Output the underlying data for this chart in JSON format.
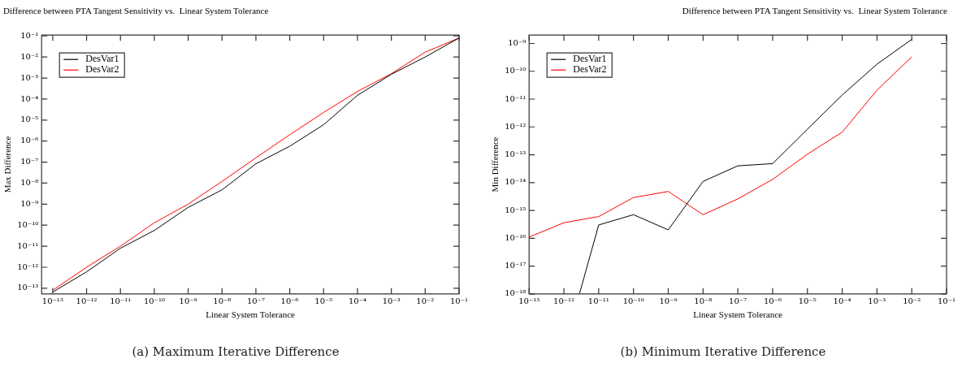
{
  "chart_data": [
    {
      "type": "line",
      "title": "Difference between PTA Tangent Sensitivity vs.  Linear System Tolerance",
      "xlabel": "Linear System Tolerance",
      "ylabel": "Max Difference",
      "log": "xy",
      "grid": false,
      "legend": "top left",
      "marker": "none",
      "line_style": "solid",
      "x": [
        1e-13,
        1e-12,
        1e-11,
        1e-10,
        1e-09,
        1e-08,
        1e-07,
        1e-06,
        1e-05,
        0.0001,
        0.001,
        0.01,
        0.1
      ],
      "xlim": [
        4.7e-14,
        0.1
      ],
      "ylim": [
        5.4e-14,
        0.11
      ],
      "xticks": [
        {
          "value": 1e-13,
          "label": "10⁻¹³"
        },
        {
          "value": 1e-12,
          "label": "10⁻¹²"
        },
        {
          "value": 1e-11,
          "label": "10⁻¹¹"
        },
        {
          "value": 1e-10,
          "label": "10⁻¹⁰"
        },
        {
          "value": 1e-09,
          "label": "10⁻⁹"
        },
        {
          "value": 1e-08,
          "label": "10⁻⁸"
        },
        {
          "value": 1e-07,
          "label": "10⁻⁷"
        },
        {
          "value": 1e-06,
          "label": "10⁻⁶"
        },
        {
          "value": 1e-05,
          "label": "10⁻⁵"
        },
        {
          "value": 0.0001,
          "label": "10⁻⁴"
        },
        {
          "value": 0.001,
          "label": "10⁻³"
        },
        {
          "value": 0.01,
          "label": "10⁻²"
        },
        {
          "value": 0.1,
          "label": "10⁻¹"
        }
      ],
      "yticks": [
        {
          "value": 1e-13,
          "label": "10⁻¹³"
        },
        {
          "value": 1e-12,
          "label": "10⁻¹²"
        },
        {
          "value": 1e-11,
          "label": "10⁻¹¹"
        },
        {
          "value": 1e-10,
          "label": "10⁻¹⁰"
        },
        {
          "value": 1e-09,
          "label": "10⁻⁹"
        },
        {
          "value": 1e-08,
          "label": "10⁻⁸"
        },
        {
          "value": 1e-07,
          "label": "10⁻⁷"
        },
        {
          "value": 1e-06,
          "label": "10⁻⁶"
        },
        {
          "value": 1e-05,
          "label": "10⁻⁵"
        },
        {
          "value": 0.0001,
          "label": "10⁻⁴"
        },
        {
          "value": 0.001,
          "label": "10⁻³"
        },
        {
          "value": 0.01,
          "label": "10⁻²"
        },
        {
          "value": 0.1,
          "label": "10⁻¹"
        }
      ],
      "series": [
        {
          "name": "DesVar1",
          "color": "#000000",
          "values": [
            6.6e-14,
            6e-13,
            8e-12,
            5.6e-11,
            7e-10,
            4.8e-09,
            8.3e-08,
            5.7e-07,
            6e-06,
            0.00015,
            0.0015,
            0.01,
            0.08
          ]
        },
        {
          "name": "DesVar2",
          "color": "#ff0000",
          "values": [
            8e-14,
            1e-12,
            1e-11,
            1.3e-10,
            1e-09,
            1.2e-08,
            1.6e-07,
            2e-06,
            2.3e-05,
            0.00023,
            0.0016,
            0.017,
            0.08
          ]
        }
      ],
      "annotations": [
        "(a)  Maximum Iterative Difference"
      ]
    },
    {
      "type": "line",
      "title": "Difference between PTA Tangent Sensitivity vs.  Linear System Tolerance",
      "xlabel": "Linear System Tolerance",
      "ylabel": "Min Difference",
      "log": "xy",
      "grid": false,
      "legend": "top left",
      "marker": "none",
      "line_style": "solid",
      "x": [
        1e-13,
        1e-12,
        1e-11,
        1e-10,
        1e-09,
        1e-08,
        1e-07,
        1e-06,
        1e-05,
        0.0001,
        0.001,
        0.01
      ],
      "xlim": [
        1e-13,
        0.1
      ],
      "ylim": [
        1e-18,
        2e-09
      ],
      "xticks": [
        {
          "value": 1e-13,
          "label": "10⁻¹³"
        },
        {
          "value": 1e-12,
          "label": "10⁻¹²"
        },
        {
          "value": 1e-11,
          "label": "10⁻¹¹"
        },
        {
          "value": 1e-10,
          "label": "10⁻¹⁰"
        },
        {
          "value": 1e-09,
          "label": "10⁻⁹"
        },
        {
          "value": 1e-08,
          "label": "10⁻⁸"
        },
        {
          "value": 1e-07,
          "label": "10⁻⁷"
        },
        {
          "value": 1e-06,
          "label": "10⁻⁶"
        },
        {
          "value": 1e-05,
          "label": "10⁻⁵"
        },
        {
          "value": 0.0001,
          "label": "10⁻⁴"
        },
        {
          "value": 0.001,
          "label": "10⁻³"
        },
        {
          "value": 0.01,
          "label": "10⁻²"
        },
        {
          "value": 0.1,
          "label": "10⁻¹"
        }
      ],
      "yticks": [
        {
          "value": 1e-18,
          "label": "10⁻¹⁸"
        },
        {
          "value": 1e-17,
          "label": "10⁻¹⁷"
        },
        {
          "value": 1e-16,
          "label": "10⁻¹⁶"
        },
        {
          "value": 1e-15,
          "label": "10⁻¹⁵"
        },
        {
          "value": 1e-14,
          "label": "10⁻¹⁴"
        },
        {
          "value": 1e-13,
          "label": "10⁻¹³"
        },
        {
          "value": 1e-12,
          "label": "10⁻¹²"
        },
        {
          "value": 1e-11,
          "label": "10⁻¹¹"
        },
        {
          "value": 1e-10,
          "label": "10⁻¹⁰"
        },
        {
          "value": 1e-09,
          "label": "10⁻⁹"
        }
      ],
      "series": [
        {
          "name": "DesVar1",
          "color": "#000000",
          "x": [
            2.8e-12,
            1e-11,
            1e-10,
            1e-09,
            1e-08,
            1e-07,
            1e-06,
            1e-05,
            0.0001,
            0.001,
            0.01
          ],
          "values": [
            1e-18,
            3e-16,
            7e-16,
            2e-16,
            1.1e-14,
            4e-14,
            4.8e-14,
            8.3e-13,
            1.4e-11,
            1.8e-10,
            1.4e-09
          ]
        },
        {
          "name": "DesVar2",
          "color": "#ff0000",
          "values": [
            1.1e-16,
            3.6e-16,
            6e-16,
            2.9e-15,
            4.8e-15,
            7e-16,
            2.6e-15,
            1.3e-14,
            1.05e-13,
            6.5e-13,
            2.1e-11,
            3.3e-10
          ]
        }
      ],
      "annotations": [
        "(b)  Minimum Iterative Difference"
      ]
    }
  ]
}
